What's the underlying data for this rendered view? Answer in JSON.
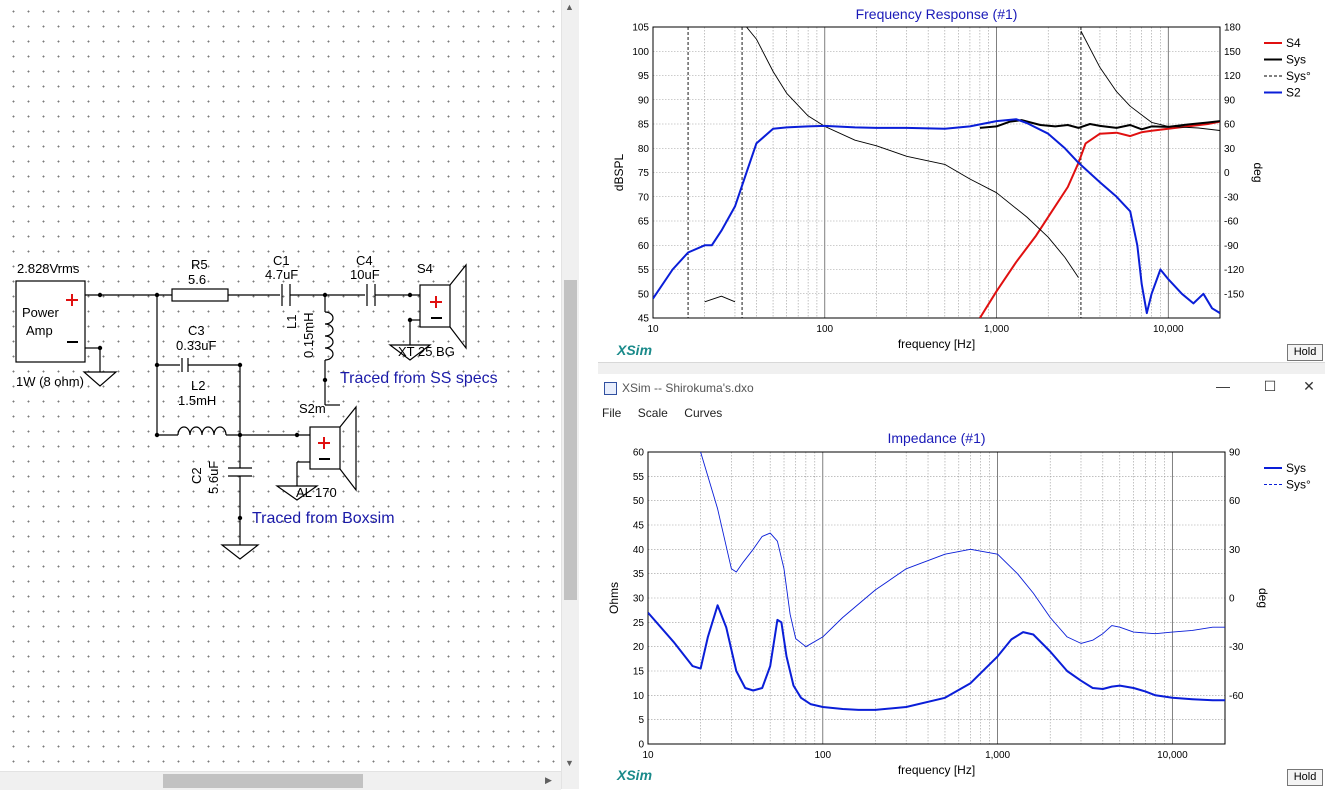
{
  "schematic": {
    "source_voltage": "2.828Vrms",
    "amp_label_1": "Power",
    "amp_label_2": "Amp",
    "amp_rating": "1W (8 ohm)",
    "components": [
      {
        "name": "R5",
        "value": "5.6"
      },
      {
        "name": "C1",
        "value": "4.7uF"
      },
      {
        "name": "C4",
        "value": "10uF"
      },
      {
        "name": "S4",
        "value": "XT 25 BG"
      },
      {
        "name": "L1",
        "value": "0.15mH"
      },
      {
        "name": "C3",
        "value": "0.33uF"
      },
      {
        "name": "L2",
        "value": "1.5mH"
      },
      {
        "name": "S2m",
        "value": "AL 170"
      },
      {
        "name": "C2",
        "value": "5.6uF"
      }
    ],
    "note_tweeter": "Traced from SS specs",
    "note_woofer": "Traced from Boxsim"
  },
  "freq_window": {
    "title": "Frequency Response (#1)",
    "logo": "XSim",
    "hold_label": "Hold"
  },
  "imp_window": {
    "window_title": "XSim -- Shirokuma's.dxo",
    "menu": [
      "File",
      "Scale",
      "Curves"
    ],
    "title": "Impedance (#1)",
    "logo": "XSim",
    "hold_label": "Hold"
  },
  "chart_data": [
    {
      "type": "line",
      "title": "Frequency Response (#1)",
      "xlabel": "frequency [Hz]",
      "ylabel": "dBSPL",
      "y2label": "deg",
      "xscale": "log",
      "xlim": [
        10,
        20000
      ],
      "ylim": [
        45,
        105
      ],
      "y2lim": [
        -180,
        180
      ],
      "xticks": [
        "10",
        "100",
        "1,000",
        "10,000"
      ],
      "yticks": [
        45,
        50,
        55,
        60,
        65,
        70,
        75,
        80,
        85,
        90,
        95,
        100,
        105
      ],
      "y2ticks": [
        -150,
        -120,
        -90,
        -60,
        -30,
        0,
        30,
        60,
        90,
        120,
        150,
        180
      ],
      "legend": [
        "S4",
        "Sys",
        "Sys°",
        "S2"
      ],
      "legend_position": "right",
      "series": [
        {
          "name": "S4",
          "color": "#e01010",
          "axis": "left",
          "x": [
            800,
            1000,
            1300,
            1700,
            2100,
            2600,
            3000,
            3300,
            4000,
            5000,
            6000,
            7000,
            8000,
            10000,
            13000,
            17000,
            20000
          ],
          "y": [
            45,
            50.5,
            56.5,
            62,
            67,
            72,
            77,
            81,
            83,
            83.2,
            82.5,
            83.3,
            83.6,
            84,
            84.5,
            85,
            85.5
          ]
        },
        {
          "name": "Sys",
          "color": "#000000",
          "axis": "left",
          "x": [
            800,
            1000,
            1200,
            1400,
            1800,
            2200,
            2600,
            3000,
            3500,
            4000,
            5000,
            6000,
            7000,
            8000,
            10000,
            13000,
            17000,
            20000
          ],
          "y": [
            84.2,
            84.5,
            85.5,
            85.8,
            84.8,
            84.5,
            84.8,
            84.2,
            85,
            84.6,
            84.2,
            84.8,
            83.9,
            84.5,
            84.4,
            84.9,
            85.3,
            85.6
          ]
        },
        {
          "name": "Sys°",
          "color": "#000000",
          "axis": "right",
          "style": "thin",
          "x": [
            20,
            25,
            30,
            35,
            40,
            50,
            60,
            80,
            100,
            150,
            200,
            300,
            500,
            700,
            1000,
            1500,
            2000,
            2500,
            3000,
            3100,
            4000,
            5000,
            6000,
            8000,
            10000,
            15000,
            20000
          ],
          "y": [
            -160,
            -153,
            -160,
            180,
            165,
            125,
            98,
            70,
            57,
            40,
            33,
            20,
            10,
            -8,
            -25,
            -55,
            -80,
            -105,
            -130,
            175,
            130,
            100,
            82,
            62,
            57,
            55,
            52
          ]
        },
        {
          "name": "S2",
          "color": "#0a1ed8",
          "axis": "left",
          "x": [
            10,
            13,
            16,
            20,
            22,
            25,
            30,
            35,
            40,
            50,
            60,
            80,
            100,
            150,
            200,
            300,
            500,
            700,
            1000,
            1300,
            1500,
            2000,
            2500,
            3000,
            4000,
            5000,
            6000,
            6600,
            7000,
            7500,
            8000,
            9000,
            10000,
            12000,
            14000,
            16000,
            18000,
            20000
          ],
          "y": [
            49,
            55,
            58.5,
            60,
            60,
            63,
            68,
            75,
            81,
            84,
            84.3,
            84.5,
            84.6,
            84.3,
            84.2,
            84.2,
            84,
            84.5,
            85.6,
            86,
            85.2,
            83,
            80,
            77,
            73,
            70,
            67,
            60,
            52,
            46,
            50,
            55,
            53,
            50,
            48,
            50,
            47,
            46
          ]
        }
      ]
    },
    {
      "type": "line",
      "title": "Impedance (#1)",
      "xlabel": "frequency [Hz]",
      "ylabel": "Ohms",
      "y2label": "deg",
      "xscale": "log",
      "xlim": [
        10,
        20000
      ],
      "ylim": [
        0,
        60
      ],
      "y2lim": [
        -90,
        90
      ],
      "xticks": [
        "10",
        "100",
        "1,000",
        "10,000"
      ],
      "yticks": [
        0,
        5,
        10,
        15,
        20,
        25,
        30,
        35,
        40,
        45,
        50,
        55,
        60
      ],
      "y2ticks": [
        -60,
        -30,
        0,
        30,
        60,
        90
      ],
      "legend": [
        "Sys",
        "Sys°"
      ],
      "legend_position": "right",
      "series": [
        {
          "name": "Sys",
          "color": "#0a1ed8",
          "axis": "left",
          "x": [
            10,
            14,
            18,
            20,
            22,
            25,
            28,
            32,
            36,
            40,
            45,
            50,
            55,
            58,
            62,
            68,
            75,
            85,
            100,
            130,
            160,
            200,
            300,
            500,
            700,
            1000,
            1200,
            1400,
            1600,
            2000,
            2500,
            3000,
            3500,
            4000,
            4500,
            5000,
            6000,
            7000,
            8000,
            10000,
            13000,
            17000,
            20000
          ],
          "y": [
            27,
            21,
            16,
            15.5,
            22,
            28.5,
            24,
            15,
            11.5,
            11,
            11.5,
            16,
            25.5,
            25,
            18,
            12,
            9.5,
            8.2,
            7.6,
            7.2,
            7,
            7,
            7.6,
            9.5,
            12.5,
            18,
            21.5,
            23,
            22.5,
            19,
            15,
            13,
            11.5,
            11.3,
            11.8,
            12,
            11.5,
            10.8,
            10,
            9.5,
            9.2,
            9,
            9
          ]
        },
        {
          "name": "Sys°",
          "color": "#0a1ed8",
          "axis": "right",
          "style": "thin",
          "x": [
            20,
            25,
            30,
            32,
            35,
            40,
            45,
            50,
            55,
            60,
            65,
            70,
            80,
            100,
            130,
            200,
            300,
            500,
            700,
            1000,
            1300,
            1600,
            2000,
            2500,
            3000,
            3500,
            4000,
            4500,
            5000,
            6000,
            8000,
            10000,
            13000,
            17000,
            20000
          ],
          "y": [
            90,
            55,
            18,
            16,
            22,
            30,
            38,
            40,
            35,
            18,
            -10,
            -25,
            -30,
            -24,
            -12,
            5,
            18,
            27,
            30,
            27,
            15,
            3,
            -12,
            -24,
            -28,
            -26,
            -22,
            -17,
            -18,
            -21,
            -22,
            -21,
            -20,
            -18,
            -18
          ]
        }
      ]
    }
  ]
}
